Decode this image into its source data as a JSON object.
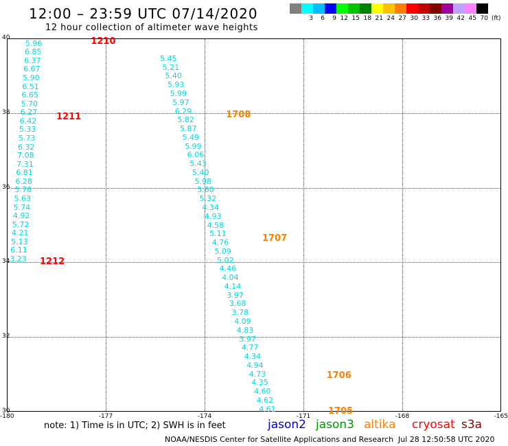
{
  "header": {
    "title": "12:00 – 23:59 UTC 07/14/2020",
    "subtitle": "12 hour collection of altimeter wave heights"
  },
  "colorbar": {
    "colors": [
      "#808080",
      "#00ffff",
      "#00bfff",
      "#0000ff",
      "#00ff00",
      "#00c000",
      "#008000",
      "#ffff00",
      "#ffc000",
      "#ff8000",
      "#ff0000",
      "#c00000",
      "#800000",
      "#a000a0",
      "#c0a0ff",
      "#ff80ff",
      "#000000"
    ],
    "labels": [
      "",
      "3",
      "6",
      "9",
      "12",
      "15",
      "18",
      "21",
      "24",
      "27",
      "30",
      "33",
      "36",
      "39",
      "42",
      "45",
      "70"
    ],
    "unit": "(ft)"
  },
  "map": {
    "lon_range": [
      -180,
      -165
    ],
    "lat_range": [
      30,
      40
    ],
    "x_ticks": [
      "-180",
      "-177",
      "-174",
      "-171",
      "-168",
      "-165"
    ],
    "y_ticks": [
      "40",
      "38",
      "36",
      "34",
      "32",
      "30"
    ],
    "passes": [
      {
        "label": "1210",
        "lon": -177.2,
        "lat": 39.9,
        "color": "#ff0000"
      },
      {
        "label": "1211",
        "lon": -178.25,
        "lat": 37.88,
        "color": "#ff0000"
      },
      {
        "label": "1212",
        "lon": -178.75,
        "lat": 34.0,
        "color": "#ff0000"
      },
      {
        "label": "1708",
        "lon": -173.1,
        "lat": 37.95,
        "color": "#ff8000"
      },
      {
        "label": "1707",
        "lon": -172.0,
        "lat": 34.63,
        "color": "#ff8000"
      },
      {
        "label": "1706",
        "lon": -170.05,
        "lat": 30.95,
        "color": "#ff8000"
      },
      {
        "label": "1705",
        "lon": -170.0,
        "lat": 30.0,
        "color": "#ff8000"
      }
    ],
    "tracks": [
      {
        "values": [
          "5.96",
          "6.85",
          "6.37",
          "6.67",
          "5.90",
          "6.51",
          "6.65",
          "5.70",
          "6.27",
          "6.42",
          "5.33",
          "5.73",
          "6.32",
          "7.08",
          "7.31",
          "6.81",
          "6.28",
          "5.76",
          "5.63",
          "5.74",
          "4.92",
          "5.72",
          "4.21",
          "5.13",
          "6.11",
          "3.23"
        ],
        "lon_start": -179.19,
        "lat_start": 39.86,
        "lon_end": -179.66,
        "lat_end": 34.08
      },
      {
        "values": [
          "5.45",
          "5.21",
          "5.40",
          "5.93",
          "5.99",
          "5.97",
          "6.29",
          "5.82",
          "5.87",
          "5.49",
          "5.99",
          "6.06",
          "5.43",
          "5.40",
          "5.98",
          "5.60",
          "5.32",
          "4.34",
          "4.93",
          "4.58",
          "5.11",
          "4.76",
          "5.09",
          "5.02",
          "4.46",
          "4.04",
          "4.14",
          "3.97",
          "3.68",
          "3.78",
          "4.09",
          "4.83",
          "3.97",
          "4.77",
          "4.34",
          "4.94",
          "4.73",
          "4.35",
          "4.60",
          "4.62",
          "4.61"
        ],
        "lon_start": -175.1,
        "lat_start": 39.45,
        "lon_end": -172.1,
        "lat_end": 30.06
      }
    ]
  },
  "notes": {
    "note": "note:  1) Time is in UTC;  2) SWH is in feet"
  },
  "satellites": [
    {
      "label": "jason2",
      "color": "#0000cc"
    },
    {
      "label": "jason3",
      "color": "#009900"
    },
    {
      "label": "altika",
      "color": "#ff8000"
    },
    {
      "label": "cryosat",
      "color": "#ff0000"
    },
    {
      "label": "s3a",
      "color": "#8b0000"
    }
  ],
  "footer": {
    "credit": "NOAA/NESDIS Center for Satellite Applications and Research",
    "date": "Jul 28 12:50:58 UTC 2020"
  }
}
